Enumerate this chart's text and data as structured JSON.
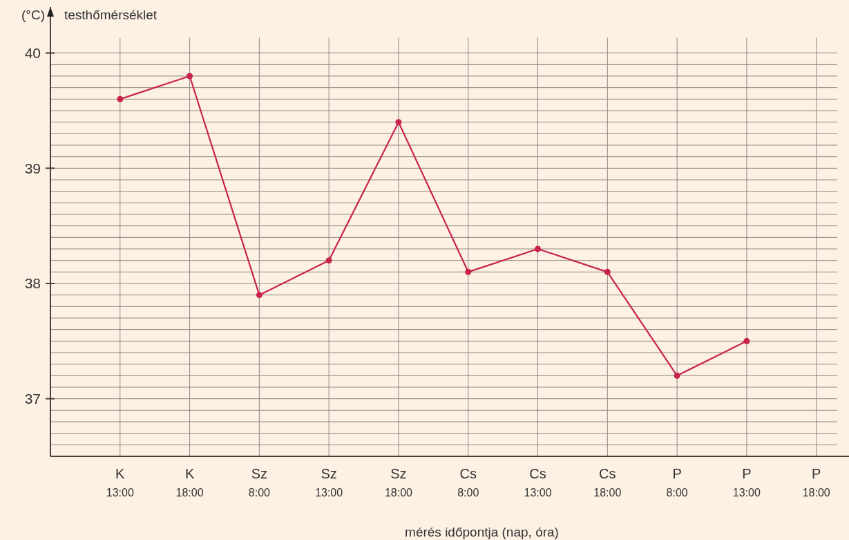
{
  "chart_data": {
    "type": "line",
    "xlabel": "mérés időpontja (nap, óra)",
    "ylabel": "testhőmérséklet",
    "annotations": [
      "(°C)"
    ],
    "categories": [
      "K 13:00",
      "K 18:00",
      "Sz 8:00",
      "Sz 13:00",
      "Sz 18:00",
      "Cs 8:00",
      "Cs 13:00",
      "Cs 18:00",
      "P 8:00",
      "P 13:00",
      "P 18:00"
    ],
    "series": [
      {
        "color": "#c8234a",
        "values": [
          39.6,
          39.8,
          37.9,
          38.2,
          39.4,
          38.1,
          38.3,
          38.1,
          37.2,
          37.5,
          null
        ]
      }
    ],
    "ylim": [
      36.5,
      40.4
    ],
    "yticks": [
      {
        "value": 36.6,
        "label": null
      },
      {
        "value": 36.7,
        "label": null
      },
      {
        "value": 36.8,
        "label": null
      },
      {
        "value": 36.9,
        "label": null
      },
      37,
      {
        "value": 37.1,
        "label": null
      },
      {
        "value": 37.2,
        "label": null
      },
      {
        "value": 37.3,
        "label": null
      },
      {
        "value": 37.4,
        "label": null
      },
      {
        "value": 37.5,
        "label": null
      },
      {
        "value": 37.6,
        "label": null
      },
      {
        "value": 37.7,
        "label": null
      },
      {
        "value": 37.8,
        "label": null
      },
      {
        "value": 37.9,
        "label": null
      },
      38,
      {
        "value": 38.1,
        "label": null
      },
      {
        "value": 38.2,
        "label": null
      },
      {
        "value": 38.3,
        "label": null
      },
      {
        "value": 38.4,
        "label": null
      },
      {
        "value": 38.5,
        "label": null
      },
      {
        "value": 38.6,
        "label": null
      },
      {
        "value": 38.7,
        "label": null
      },
      {
        "value": 38.8,
        "label": null
      },
      {
        "value": 38.9,
        "label": null
      },
      39,
      {
        "value": 39.1,
        "label": null
      },
      {
        "value": 39.2,
        "label": null
      },
      {
        "value": 39.3,
        "label": null
      },
      {
        "value": 39.4,
        "label": null
      },
      {
        "value": 39.5,
        "label": null
      },
      {
        "value": 39.6,
        "label": null
      },
      {
        "value": 39.7,
        "label": null
      },
      {
        "value": 39.8,
        "label": null
      },
      {
        "value": 39.9,
        "label": null
      },
      40
    ],
    "grid": true,
    "marker": "circle",
    "line_style": "solid"
  }
}
